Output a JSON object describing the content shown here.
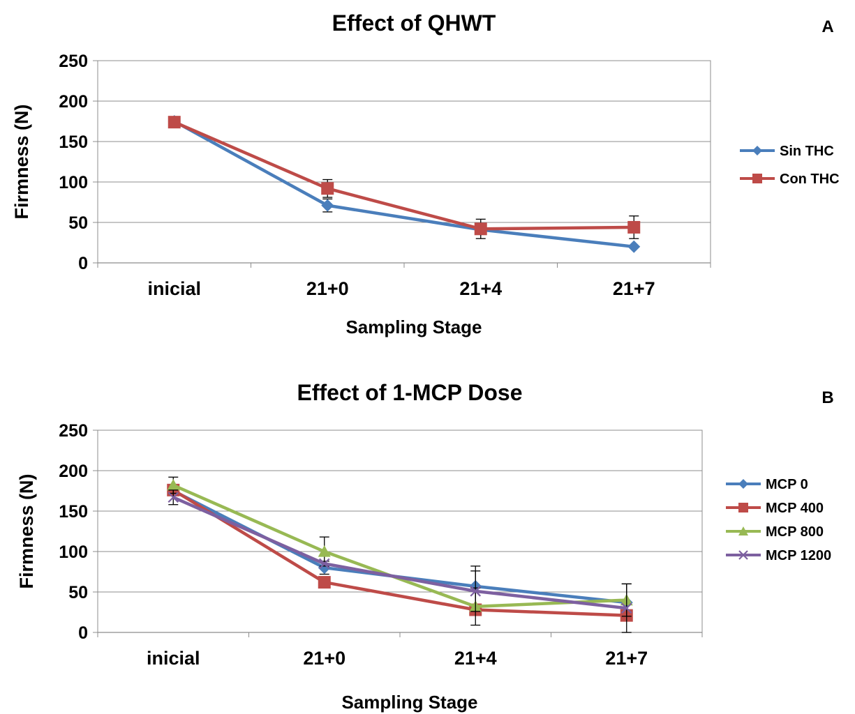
{
  "chart_data": [
    {
      "type": "line",
      "panel_label": "A",
      "title": "Effect of QHWT",
      "xlabel": "Sampling Stage",
      "ylabel": "Firmness (N)",
      "categories": [
        "inicial",
        "21+0",
        "21+4",
        "21+7"
      ],
      "ylim": [
        0,
        250
      ],
      "yticks": [
        0,
        50,
        100,
        150,
        200,
        250
      ],
      "grid": true,
      "legend_position": "right",
      "series": [
        {
          "name": "Sin THC",
          "color": "#4a7ebb",
          "marker": "diamond",
          "values": [
            175,
            71,
            41,
            20
          ],
          "errors": [
            0,
            8,
            0,
            0
          ]
        },
        {
          "name": "Con THC",
          "color": "#be4b48",
          "marker": "square",
          "values": [
            174,
            92,
            42,
            44
          ],
          "errors": [
            0,
            11,
            12,
            14
          ]
        }
      ]
    },
    {
      "type": "line",
      "panel_label": "B",
      "title": "Effect of 1-MCP Dose",
      "xlabel": "Sampling Stage",
      "ylabel": "Firmness (N)",
      "categories": [
        "inicial",
        "21+0",
        "21+4",
        "21+7"
      ],
      "ylim": [
        0,
        250
      ],
      "yticks": [
        0,
        50,
        100,
        150,
        200,
        250
      ],
      "grid": true,
      "legend_position": "right",
      "series": [
        {
          "name": "MCP 0",
          "color": "#4a7ebb",
          "marker": "diamond",
          "values": [
            175,
            80,
            57,
            37
          ],
          "errors": [
            0,
            8,
            25,
            0
          ]
        },
        {
          "name": "MCP 400",
          "color": "#be4b48",
          "marker": "square",
          "values": [
            176,
            62,
            28,
            21
          ],
          "errors": [
            0,
            0,
            0,
            0
          ]
        },
        {
          "name": "MCP 800",
          "color": "#98b954",
          "marker": "triangle",
          "values": [
            182,
            100,
            32,
            40
          ],
          "errors": [
            10,
            18,
            23,
            20
          ]
        },
        {
          "name": "MCP 1200",
          "color": "#7d60a0",
          "marker": "x",
          "values": [
            167,
            85,
            51,
            30
          ],
          "errors": [
            9,
            0,
            25,
            30
          ]
        }
      ]
    }
  ]
}
